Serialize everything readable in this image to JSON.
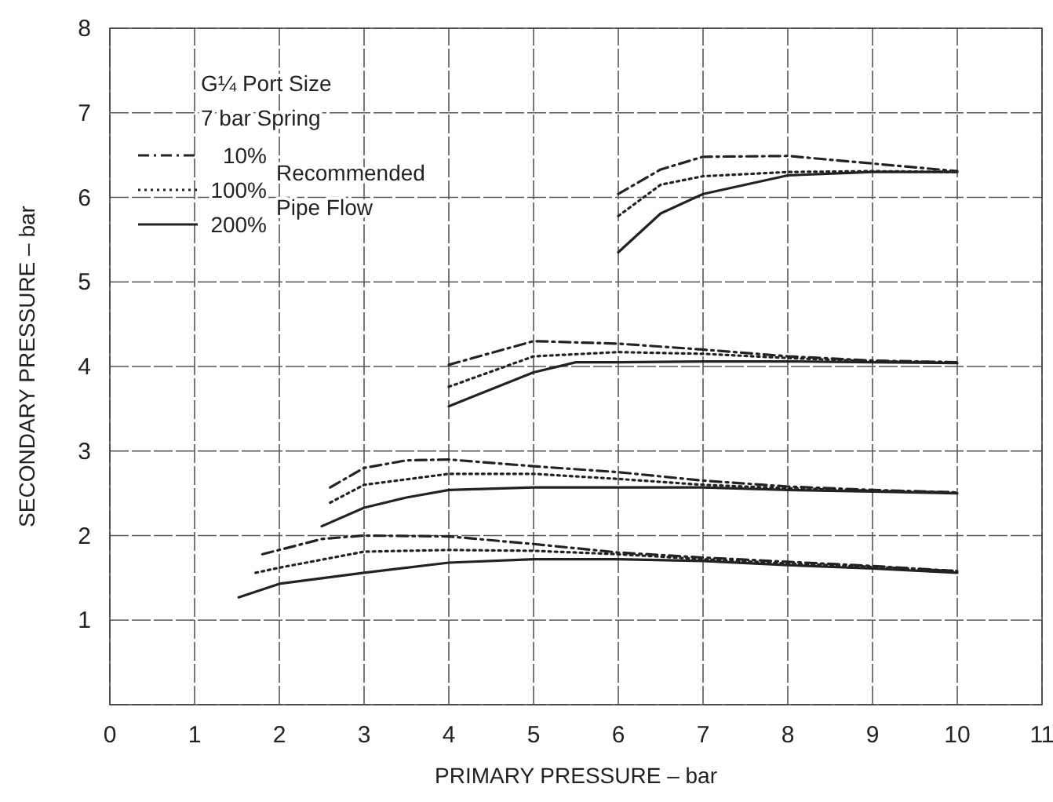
{
  "chart_data": {
    "type": "line",
    "xlabel": "PRIMARY PRESSURE – bar",
    "ylabel": "SECONDARY PRESSURE – bar",
    "legend_title": "G¼ Port Size",
    "annotations": [
      "7 bar Spring",
      "Recommended Pipe Flow"
    ],
    "xlim": [
      0,
      11
    ],
    "ylim": [
      0,
      8
    ],
    "xticks": [
      0,
      1,
      2,
      3,
      4,
      5,
      6,
      7,
      8,
      9,
      10,
      11
    ],
    "yticks": [
      {
        "value": 0,
        "label": null
      },
      1,
      2,
      3,
      4,
      5,
      6,
      7,
      8
    ],
    "grid": true,
    "legend": "top left",
    "series": [
      {
        "name": "10%",
        "color": "#222222",
        "line_style": "dashed",
        "x": [
          6,
          6.5,
          7,
          8,
          9,
          10
        ],
        "values": [
          6.04,
          6.33,
          6.48,
          6.49,
          6.4,
          6.31
        ]
      },
      {
        "name": "100%",
        "color": "#222222",
        "line_style": "dotted",
        "x": [
          6,
          6.5,
          7,
          8,
          9,
          10
        ],
        "values": [
          5.78,
          6.15,
          6.25,
          6.3,
          6.31,
          6.3
        ]
      },
      {
        "name": "200%",
        "color": "#222222",
        "line_style": "solid",
        "x": [
          6,
          6.5,
          7,
          8,
          9,
          10
        ],
        "values": [
          5.35,
          5.81,
          6.04,
          6.26,
          6.3,
          6.3
        ]
      },
      {
        "color": "#222222",
        "line_style": "dashed",
        "x": [
          4,
          5,
          6,
          7,
          8,
          9,
          10
        ],
        "values": [
          4.02,
          4.3,
          4.27,
          4.2,
          4.12,
          4.07,
          4.05
        ]
      },
      {
        "color": "#222222",
        "line_style": "dotted",
        "x": [
          4,
          5,
          6,
          7,
          8,
          9,
          10
        ],
        "values": [
          3.76,
          4.12,
          4.17,
          4.15,
          4.1,
          4.06,
          4.05
        ]
      },
      {
        "color": "#222222",
        "line_style": "solid",
        "x": [
          4,
          5,
          5.5,
          6,
          7,
          8,
          9,
          10
        ],
        "values": [
          3.53,
          3.93,
          4.05,
          4.05,
          4.06,
          4.06,
          4.05,
          4.04
        ]
      },
      {
        "color": "#222222",
        "line_style": "dashed",
        "x": [
          2.6,
          3,
          3.5,
          4,
          5,
          6,
          7,
          8,
          9,
          10
        ],
        "values": [
          2.57,
          2.8,
          2.89,
          2.9,
          2.82,
          2.75,
          2.65,
          2.58,
          2.54,
          2.51
        ]
      },
      {
        "color": "#222222",
        "line_style": "dotted",
        "x": [
          2.6,
          3,
          4,
          5,
          6,
          7,
          8,
          9,
          10
        ],
        "values": [
          2.39,
          2.6,
          2.73,
          2.73,
          2.67,
          2.6,
          2.56,
          2.53,
          2.51
        ]
      },
      {
        "color": "#222222",
        "line_style": "solid",
        "x": [
          2.5,
          3,
          3.5,
          4,
          5,
          6,
          7,
          8,
          9,
          10
        ],
        "values": [
          2.11,
          2.33,
          2.45,
          2.54,
          2.57,
          2.57,
          2.57,
          2.54,
          2.52,
          2.5
        ]
      },
      {
        "color": "#222222",
        "line_style": "dashed",
        "x": [
          1.8,
          2,
          2.5,
          3,
          4,
          5,
          6,
          7,
          8,
          9,
          10
        ],
        "values": [
          1.78,
          1.83,
          1.96,
          2.0,
          1.99,
          1.9,
          1.8,
          1.74,
          1.69,
          1.64,
          1.58
        ]
      },
      {
        "color": "#222222",
        "line_style": "dotted",
        "x": [
          1.72,
          2,
          3,
          4,
          5,
          6,
          7,
          8,
          9,
          10
        ],
        "values": [
          1.56,
          1.62,
          1.81,
          1.83,
          1.82,
          1.78,
          1.72,
          1.67,
          1.63,
          1.58
        ]
      },
      {
        "color": "#222222",
        "line_style": "solid",
        "x": [
          1.52,
          2,
          3,
          4,
          5,
          6,
          7,
          8,
          9,
          10
        ],
        "values": [
          1.27,
          1.43,
          1.56,
          1.68,
          1.72,
          1.72,
          1.7,
          1.65,
          1.61,
          1.56
        ]
      }
    ]
  }
}
